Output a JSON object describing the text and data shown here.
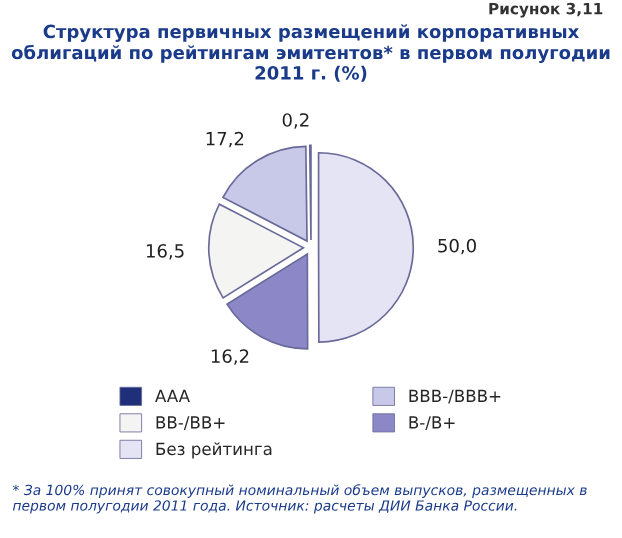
{
  "chart_data": {
    "type": "pie",
    "title": "Структура первичных размещений корпоративных облигаций по рейтингам эмитентов* в первом полугодии 2011 г. (%)",
    "categories": [
      "Без рейтинга",
      "B-/B+",
      "BB-/BB+",
      "BBB-/BBB+",
      "AAA"
    ],
    "values": [
      50.0,
      16.2,
      16.5,
      17.2,
      0.2
    ],
    "value_labels": [
      "50,0",
      "16,2",
      "16,5",
      "17,2",
      "0,2"
    ],
    "colors": [
      "#e4e4f4",
      "#8c88c8",
      "#f4f4f2",
      "#c8c8e8",
      "#1f2f7a"
    ],
    "legend": "bottom",
    "annotations": [
      "Рисунок 3,11",
      "* За 100% принят совокупный номинальный объем выпусков, размещенных в первом полугодии 2011 года. Источник: расчеты ДИИ Банка России."
    ]
  }
}
